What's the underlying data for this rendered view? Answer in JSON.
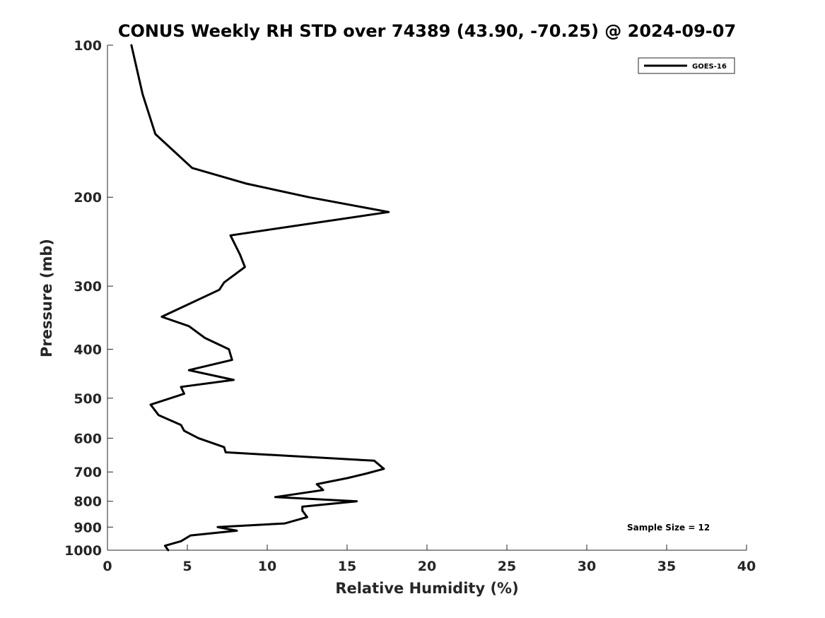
{
  "chart_data": {
    "type": "line",
    "title": "CONUS Weekly RH STD over 74389 (43.90, -70.25) @ 2024-09-07",
    "xlabel": "Relative Humidity (%)",
    "ylabel": "Pressure (mb)",
    "xlim": [
      0,
      40
    ],
    "ylim": [
      1000,
      100
    ],
    "yscale": "log",
    "grid": false,
    "xticks": [
      0,
      5,
      10,
      15,
      20,
      25,
      30,
      35,
      40
    ],
    "xtick_labels": [
      "0",
      "5",
      "10",
      "15",
      "20",
      "25",
      "30",
      "35",
      "40"
    ],
    "yticks": [
      100,
      200,
      300,
      400,
      500,
      600,
      700,
      800,
      900,
      1000
    ],
    "ytick_labels": [
      "100",
      "200",
      "300",
      "400",
      "500",
      "600",
      "700",
      "800",
      "900",
      "1000"
    ],
    "legend": {
      "position": "top-right",
      "entries": [
        "GOES-16"
      ]
    },
    "annotation": "Sample Size = 12",
    "series": [
      {
        "name": "GOES-16",
        "color": "#000000",
        "points": [
          [
            1.5,
            100
          ],
          [
            2.2,
            125
          ],
          [
            3.0,
            150
          ],
          [
            5.3,
            175
          ],
          [
            8.7,
            188
          ],
          [
            12.6,
            200
          ],
          [
            17.6,
            214
          ],
          [
            7.7,
            238
          ],
          [
            8.3,
            260
          ],
          [
            8.6,
            275
          ],
          [
            7.3,
            295
          ],
          [
            7.0,
            305
          ],
          [
            3.4,
            345
          ],
          [
            5.1,
            360
          ],
          [
            6.1,
            380
          ],
          [
            7.6,
            400
          ],
          [
            7.8,
            420
          ],
          [
            5.1,
            440
          ],
          [
            7.9,
            460
          ],
          [
            4.6,
            475
          ],
          [
            4.8,
            490
          ],
          [
            2.7,
            515
          ],
          [
            3.2,
            540
          ],
          [
            4.6,
            565
          ],
          [
            4.8,
            580
          ],
          [
            5.7,
            600
          ],
          [
            7.3,
            625
          ],
          [
            7.4,
            640
          ],
          [
            16.7,
            665
          ],
          [
            17.3,
            690
          ],
          [
            16.2,
            705
          ],
          [
            15.0,
            720
          ],
          [
            13.1,
            740
          ],
          [
            13.5,
            760
          ],
          [
            10.5,
            785
          ],
          [
            15.6,
            800
          ],
          [
            12.2,
            820
          ],
          [
            12.2,
            835
          ],
          [
            12.5,
            860
          ],
          [
            11.1,
            885
          ],
          [
            6.9,
            900
          ],
          [
            8.1,
            915
          ],
          [
            5.2,
            935
          ],
          [
            4.6,
            960
          ],
          [
            3.6,
            980
          ],
          [
            3.8,
            1000
          ]
        ]
      }
    ]
  }
}
